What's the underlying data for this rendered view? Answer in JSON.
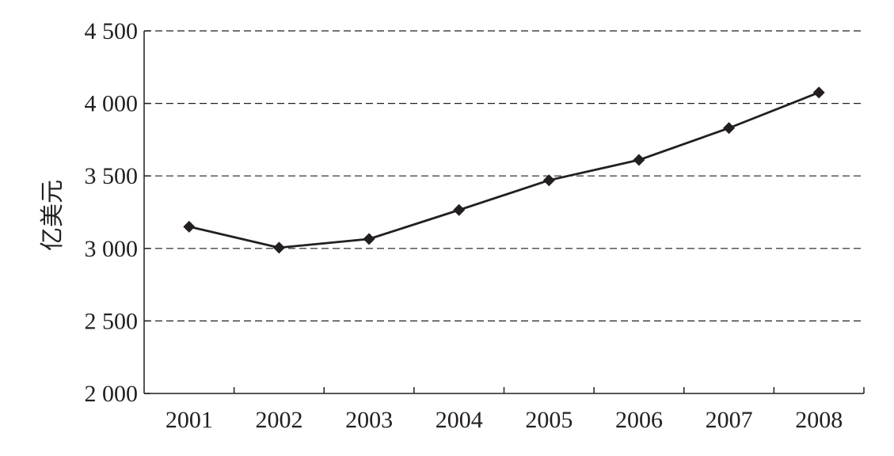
{
  "chart_data": {
    "type": "line",
    "title": "",
    "xlabel": "",
    "ylabel": "亿美元",
    "categories": [
      "2001",
      "2002",
      "2003",
      "2004",
      "2005",
      "2006",
      "2007",
      "2008"
    ],
    "series": [
      {
        "values": [
          3150,
          3005,
          3065,
          3265,
          3470,
          3610,
          3830,
          4075
        ],
        "marker": "diamond",
        "color": "#231f20"
      }
    ],
    "ylim": [
      2000,
      4500
    ],
    "y_ticks": [
      2000,
      2500,
      3000,
      3500,
      4000,
      4500
    ],
    "y_tick_labels": [
      "2 000",
      "2 500",
      "3 000",
      "3 500",
      "4 000",
      "4 500"
    ],
    "grid": "horizontal-dashed",
    "legend": "none"
  }
}
